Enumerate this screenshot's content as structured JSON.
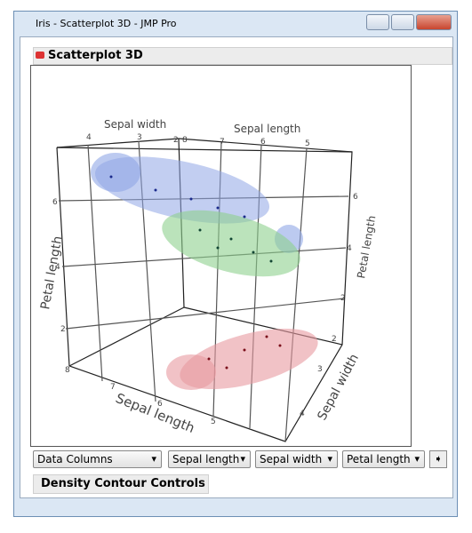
{
  "window": {
    "title": "Iris - Scatterplot 3D - JMP Pro"
  },
  "panel": {
    "title": "Scatterplot 3D"
  },
  "plot": {
    "axis_labels": [
      "Sepal width",
      "Sepal length",
      "Petal length",
      "Sepal length",
      "Sepal width",
      "Petal length"
    ],
    "tick_labels": {
      "top_sepal_width": [
        "4",
        "3",
        "2"
      ],
      "top_sepal_length": [
        "8",
        "7",
        "6",
        "5"
      ],
      "left_petal_length": [
        "6",
        "4",
        "2"
      ],
      "bottom_sepal_length": [
        "8",
        "7",
        "6",
        "5"
      ],
      "right_petal_length": [
        "6",
        "4",
        "2"
      ],
      "right_sepal_width": [
        "2",
        "3",
        "4"
      ]
    }
  },
  "controls": {
    "dropdowns": [
      "Data Columns",
      "Sepal length",
      "Sepal width",
      "Petal length"
    ]
  },
  "density_section": {
    "title": "Density Contour Controls"
  }
}
